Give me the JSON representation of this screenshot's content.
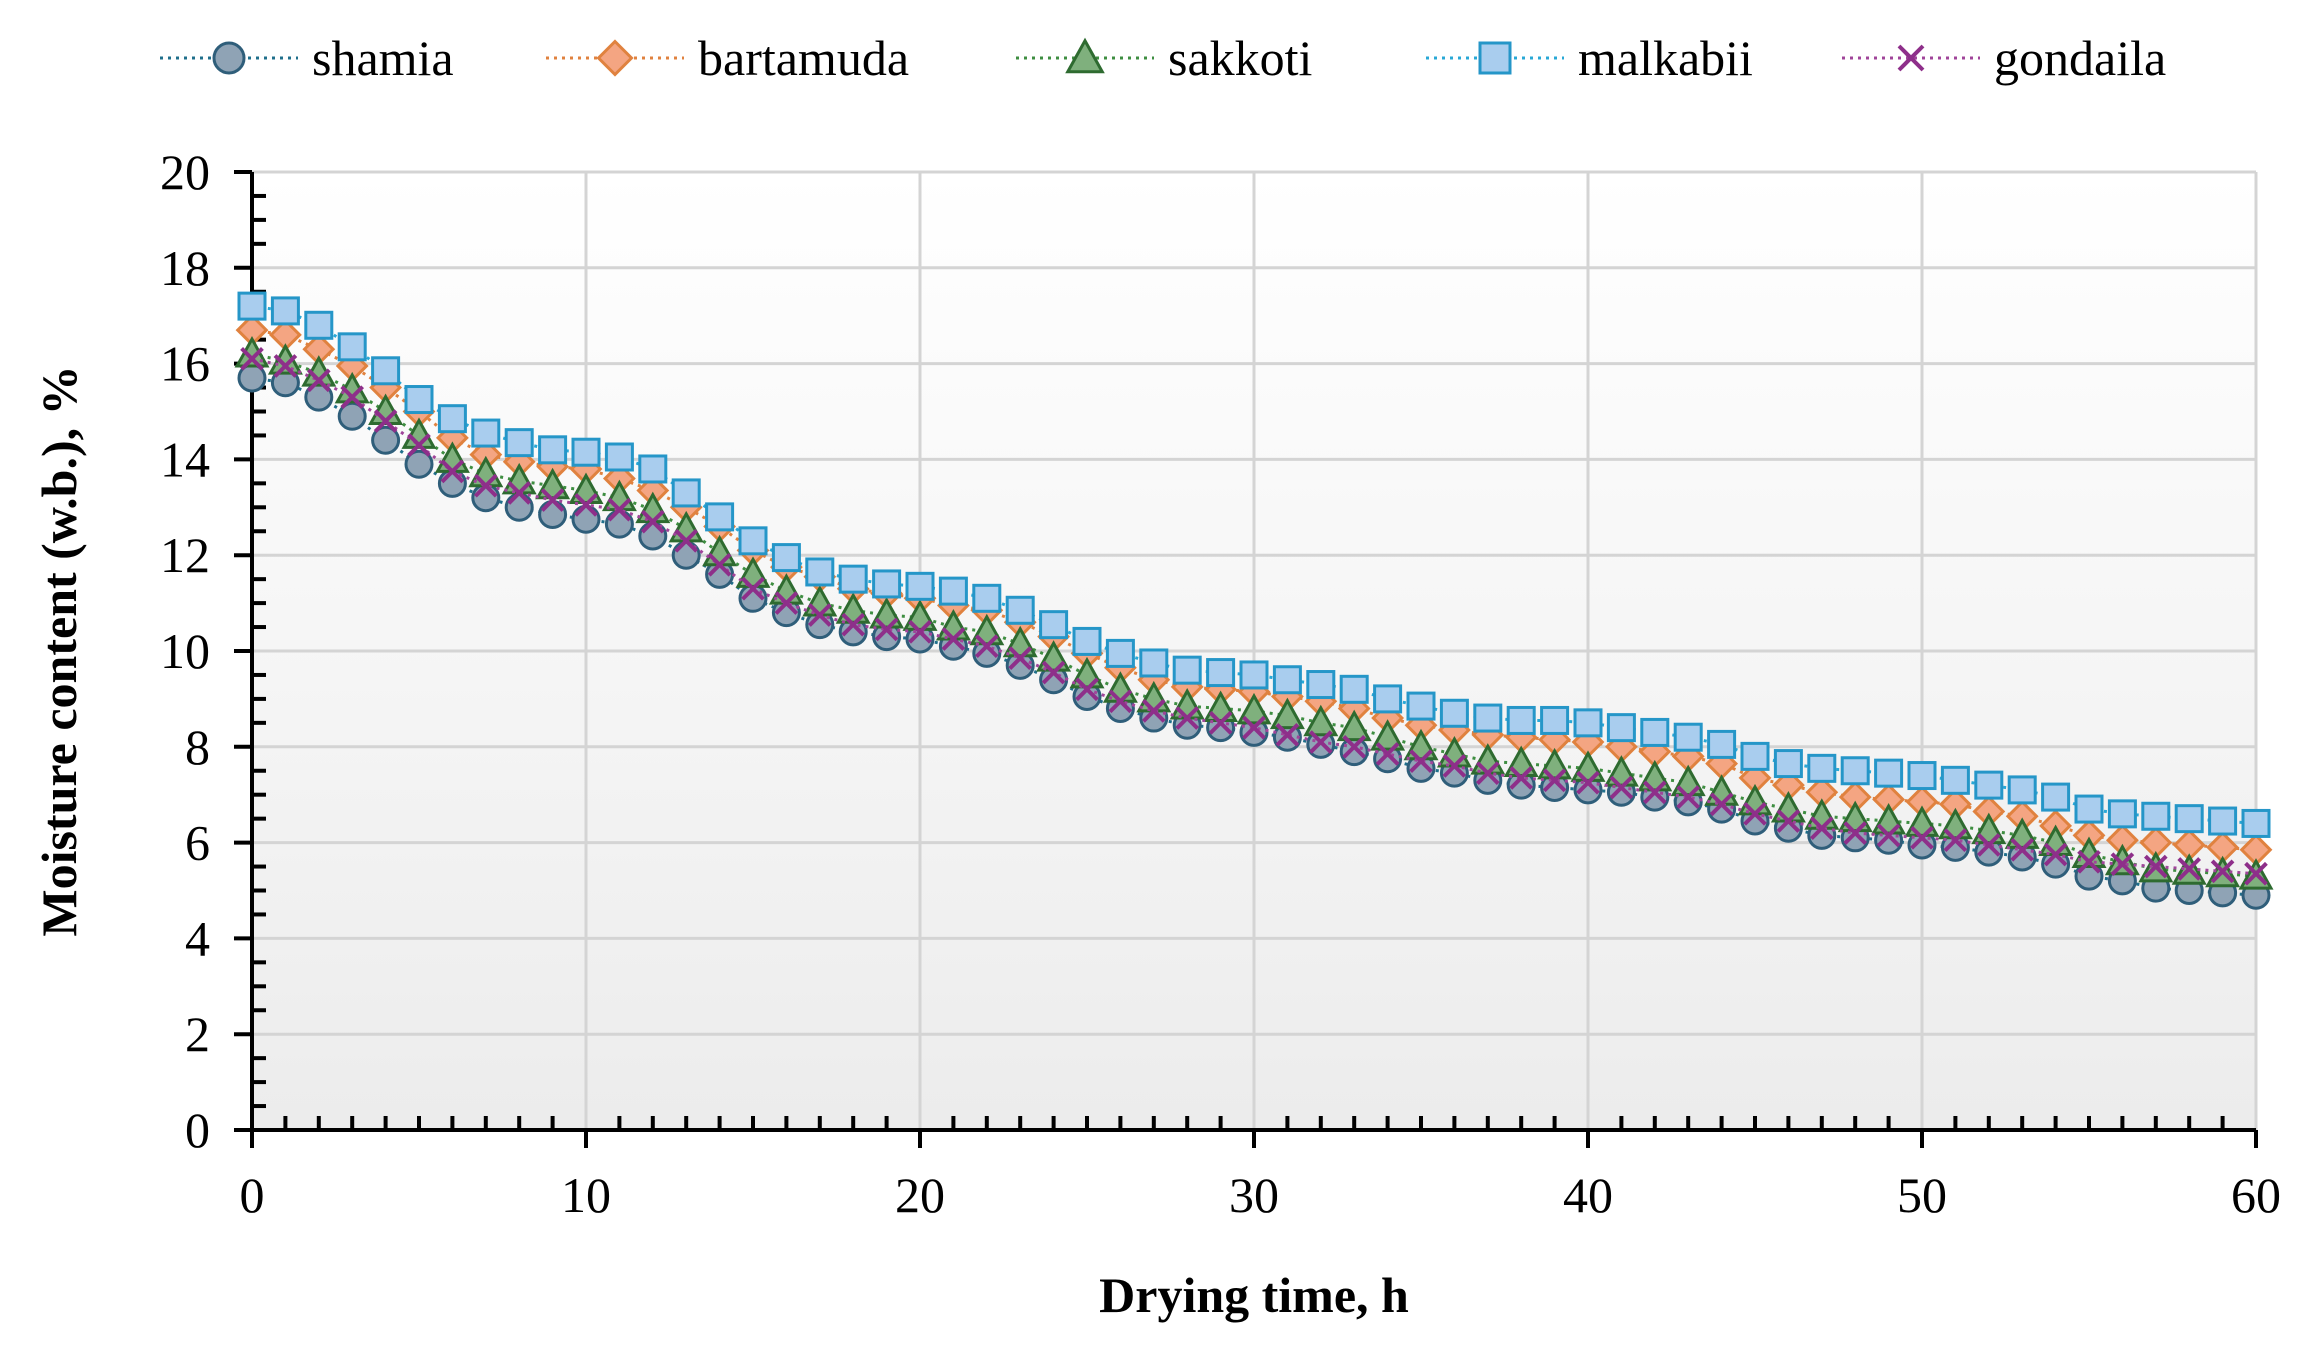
{
  "chart_data": {
    "type": "line",
    "title": "",
    "xlabel": "Drying time, h",
    "ylabel": "Moisture content (w.b.), %",
    "xlim": [
      0,
      60
    ],
    "ylim": [
      0,
      20
    ],
    "xticks": [
      0,
      10,
      20,
      30,
      40,
      50,
      60
    ],
    "yticks": [
      0,
      2,
      4,
      6,
      8,
      10,
      12,
      14,
      16,
      18,
      20
    ],
    "grid": true,
    "legend_position": "top",
    "x": [
      0,
      1,
      2,
      3,
      4,
      5,
      6,
      7,
      8,
      9,
      10,
      11,
      12,
      13,
      14,
      15,
      16,
      17,
      18,
      19,
      20,
      21,
      22,
      23,
      24,
      25,
      26,
      27,
      28,
      29,
      30,
      31,
      32,
      33,
      34,
      35,
      36,
      37,
      38,
      39,
      40,
      41,
      42,
      43,
      44,
      45,
      46,
      47,
      48,
      49,
      50,
      51,
      52,
      53,
      54,
      55,
      56,
      57,
      58,
      59,
      60
    ],
    "series": [
      {
        "name": "shamia",
        "marker": "circle",
        "line_color": "#1f6f8b",
        "fill_color": "#8fa3b5",
        "stroke_color": "#2f5e7a",
        "values": [
          15.7,
          15.6,
          15.3,
          14.9,
          14.4,
          13.9,
          13.5,
          13.2,
          13.0,
          12.85,
          12.75,
          12.65,
          12.4,
          12.0,
          11.6,
          11.1,
          10.8,
          10.55,
          10.4,
          10.3,
          10.25,
          10.1,
          9.95,
          9.7,
          9.4,
          9.05,
          8.8,
          8.6,
          8.45,
          8.4,
          8.3,
          8.2,
          8.05,
          7.9,
          7.75,
          7.55,
          7.45,
          7.3,
          7.2,
          7.15,
          7.1,
          7.05,
          6.95,
          6.85,
          6.7,
          6.45,
          6.3,
          6.15,
          6.1,
          6.05,
          5.95,
          5.9,
          5.8,
          5.7,
          5.55,
          5.3,
          5.2,
          5.05,
          5.0,
          4.95,
          4.9
        ]
      },
      {
        "name": "bartamuda",
        "marker": "diamond",
        "line_color": "#e0823f",
        "fill_color": "#f4a582",
        "stroke_color": "#e0823f",
        "values": [
          16.7,
          16.6,
          16.3,
          15.95,
          15.5,
          15.0,
          14.45,
          14.1,
          13.95,
          13.85,
          13.8,
          13.6,
          13.35,
          13.0,
          12.6,
          12.1,
          11.75,
          11.55,
          11.3,
          11.2,
          11.1,
          10.95,
          10.85,
          10.6,
          10.3,
          9.95,
          9.65,
          9.4,
          9.25,
          9.2,
          9.15,
          9.05,
          8.95,
          8.8,
          8.6,
          8.45,
          8.35,
          8.25,
          8.2,
          8.15,
          8.1,
          8.0,
          7.9,
          7.8,
          7.65,
          7.35,
          7.2,
          7.05,
          6.95,
          6.9,
          6.85,
          6.8,
          6.65,
          6.55,
          6.35,
          6.15,
          6.05,
          6.0,
          5.95,
          5.9,
          5.85
        ]
      },
      {
        "name": "sakkoti",
        "marker": "triangle",
        "line_color": "#3e8e41",
        "fill_color": "#7fb07d",
        "stroke_color": "#2e6b30",
        "values": [
          16.2,
          16.05,
          15.8,
          15.45,
          15.0,
          14.5,
          14.0,
          13.7,
          13.55,
          13.45,
          13.35,
          13.2,
          12.95,
          12.55,
          12.05,
          11.6,
          11.25,
          11.0,
          10.85,
          10.75,
          10.7,
          10.5,
          10.4,
          10.15,
          9.85,
          9.5,
          9.2,
          9.0,
          8.85,
          8.8,
          8.75,
          8.65,
          8.5,
          8.4,
          8.2,
          8.0,
          7.85,
          7.7,
          7.65,
          7.6,
          7.55,
          7.45,
          7.35,
          7.25,
          7.05,
          6.85,
          6.7,
          6.55,
          6.5,
          6.45,
          6.4,
          6.35,
          6.25,
          6.15,
          6.0,
          5.75,
          5.6,
          5.45,
          5.4,
          5.35,
          5.3
        ]
      },
      {
        "name": "malkabii",
        "marker": "square",
        "line_color": "#29a8d6",
        "fill_color": "#a9cdee",
        "stroke_color": "#2596c8",
        "values": [
          17.2,
          17.1,
          16.8,
          16.35,
          15.85,
          15.25,
          14.85,
          14.55,
          14.35,
          14.2,
          14.15,
          14.05,
          13.8,
          13.3,
          12.8,
          12.3,
          11.95,
          11.65,
          11.5,
          11.4,
          11.35,
          11.25,
          11.1,
          10.85,
          10.55,
          10.2,
          9.95,
          9.75,
          9.6,
          9.55,
          9.5,
          9.4,
          9.3,
          9.2,
          9.0,
          8.85,
          8.7,
          8.6,
          8.55,
          8.55,
          8.5,
          8.4,
          8.3,
          8.2,
          8.05,
          7.8,
          7.65,
          7.55,
          7.5,
          7.45,
          7.4,
          7.3,
          7.2,
          7.1,
          6.95,
          6.7,
          6.6,
          6.55,
          6.5,
          6.45,
          6.4
        ]
      },
      {
        "name": "gondaila",
        "marker": "x",
        "line_color": "#a0459a",
        "fill_color": "#a0459a",
        "stroke_color": "#8e2f8a",
        "values": [
          16.1,
          15.95,
          15.65,
          15.3,
          14.8,
          14.3,
          13.75,
          13.45,
          13.3,
          13.15,
          13.05,
          12.95,
          12.7,
          12.3,
          11.8,
          11.3,
          11.0,
          10.75,
          10.55,
          10.45,
          10.4,
          10.25,
          10.1,
          9.85,
          9.55,
          9.2,
          8.95,
          8.75,
          8.6,
          8.5,
          8.4,
          8.25,
          8.1,
          8.0,
          7.85,
          7.7,
          7.6,
          7.45,
          7.35,
          7.3,
          7.25,
          7.15,
          7.05,
          6.95,
          6.8,
          6.6,
          6.45,
          6.3,
          6.2,
          6.15,
          6.1,
          6.05,
          5.95,
          5.85,
          5.75,
          5.6,
          5.55,
          5.5,
          5.45,
          5.4,
          5.35
        ]
      }
    ]
  }
}
